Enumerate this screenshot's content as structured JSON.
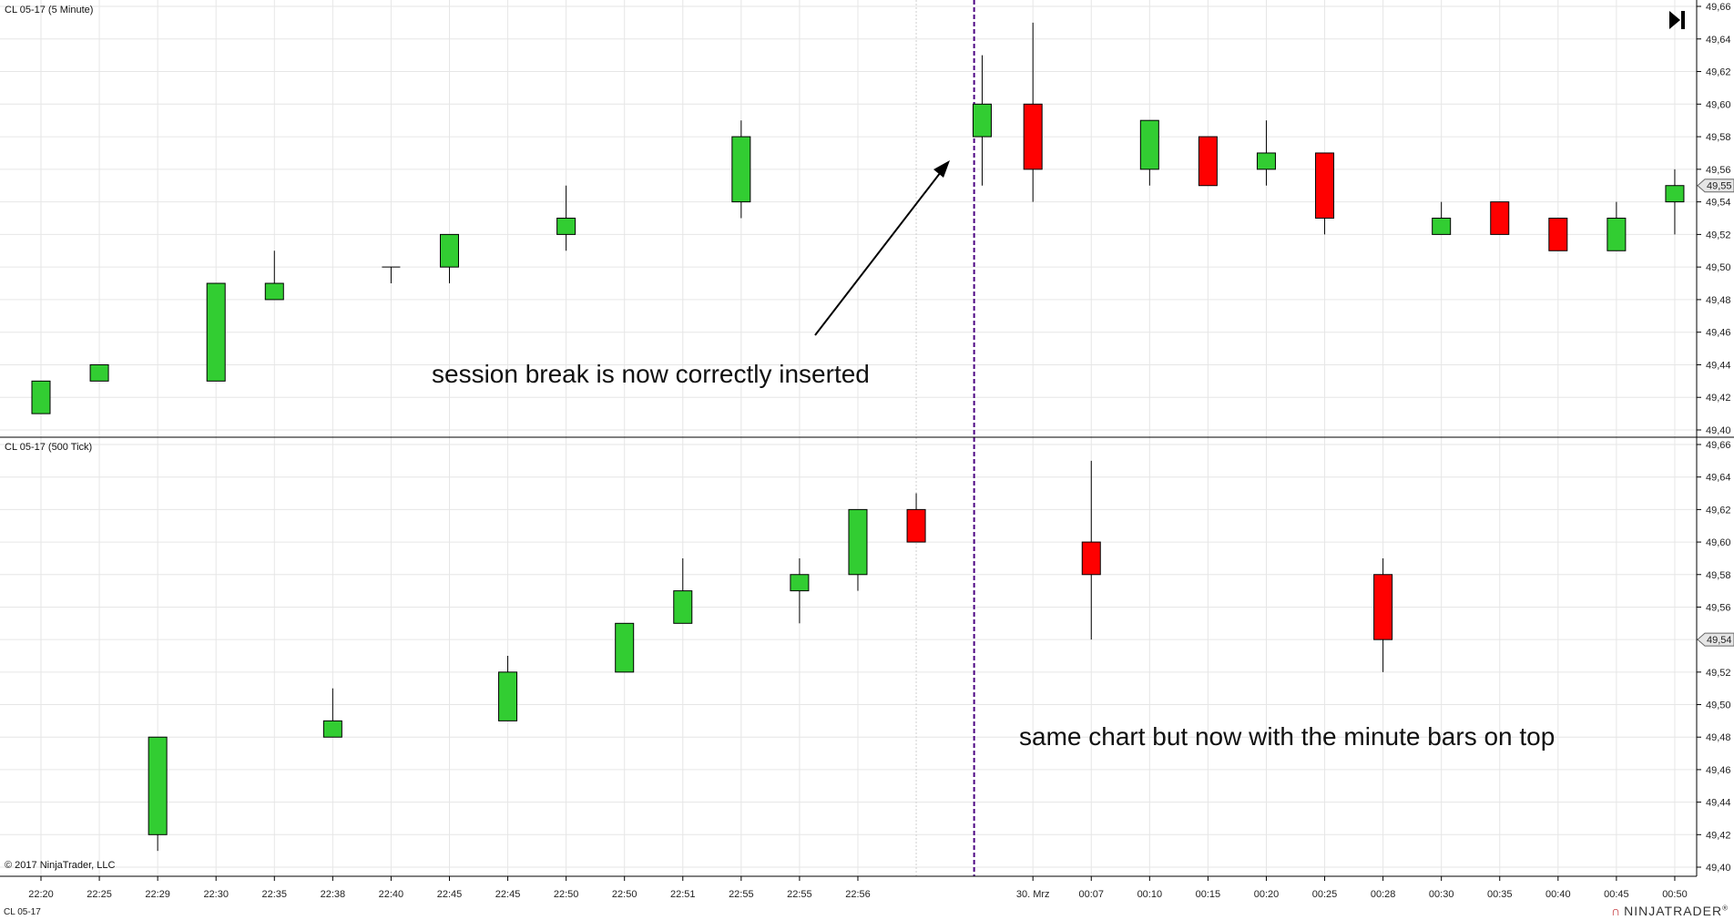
{
  "colors": {
    "up": "#32cd32",
    "down": "#ff0000",
    "grid": "#e6e6e6",
    "session_break": "#4b0082",
    "border": "#000000"
  },
  "icons": {
    "go_to_end": "skip-to-end-icon",
    "brand_logo": "ninjatrader-logo-icon"
  },
  "footer": {
    "symbol": "CL 05-17",
    "brand": "NINJATRADER",
    "brand_mark": "®"
  },
  "x_axis": {
    "labels": [
      "22:20",
      "22:25",
      "22:29",
      "22:30",
      "22:35",
      "22:38",
      "22:40",
      "22:45",
      "22:45",
      "22:50",
      "22:50",
      "22:51",
      "22:55",
      "22:55",
      "22:56",
      "",
      "",
      "30. Mrz",
      "00:07",
      "00:10",
      "00:15",
      "00:20",
      "00:25",
      "00:28",
      "00:30",
      "00:35",
      "00:40",
      "00:45",
      "00:50"
    ],
    "session_break_index": 16
  },
  "chart_data": [
    {
      "type": "candlestick",
      "title": "CL 05-17 (5 Minute)",
      "ylim": [
        49.4,
        49.66
      ],
      "yticks": [
        "49,40",
        "49,42",
        "49,44",
        "49,46",
        "49,48",
        "49,50",
        "49,52",
        "49,54",
        "49,56",
        "49,58",
        "49,60",
        "49,62",
        "49,64",
        "49,66"
      ],
      "last_price_label": "49,55",
      "last_price": 49.55,
      "annotation": "session break is now correctly inserted",
      "copyright": "",
      "bars": [
        {
          "slot": 0,
          "o": 49.41,
          "h": 49.43,
          "l": 49.41,
          "c": 49.43
        },
        {
          "slot": 1,
          "o": 49.43,
          "h": 49.44,
          "l": 49.43,
          "c": 49.44
        },
        {
          "slot": 3,
          "o": 49.43,
          "h": 49.49,
          "l": 49.43,
          "c": 49.49
        },
        {
          "slot": 4,
          "o": 49.48,
          "h": 49.51,
          "l": 49.48,
          "c": 49.49
        },
        {
          "slot": 6,
          "o": 49.5,
          "h": 49.5,
          "l": 49.49,
          "c": 49.5
        },
        {
          "slot": 7,
          "o": 49.5,
          "h": 49.52,
          "l": 49.49,
          "c": 49.52
        },
        {
          "slot": 9,
          "o": 49.52,
          "h": 49.55,
          "l": 49.51,
          "c": 49.53
        },
        {
          "slot": 12,
          "o": 49.54,
          "h": 49.59,
          "l": 49.53,
          "c": 49.58
        },
        {
          "slot": 16.13,
          "o": 49.58,
          "h": 49.63,
          "l": 49.55,
          "c": 49.6
        },
        {
          "slot": 17,
          "o": 49.6,
          "h": 49.65,
          "l": 49.54,
          "c": 49.56
        },
        {
          "slot": 19,
          "o": 49.56,
          "h": 49.59,
          "l": 49.55,
          "c": 49.59
        },
        {
          "slot": 20,
          "o": 49.58,
          "h": 49.58,
          "l": 49.55,
          "c": 49.55
        },
        {
          "slot": 21,
          "o": 49.56,
          "h": 49.59,
          "l": 49.55,
          "c": 49.57
        },
        {
          "slot": 22,
          "o": 49.57,
          "h": 49.57,
          "l": 49.52,
          "c": 49.53
        },
        {
          "slot": 24,
          "o": 49.52,
          "h": 49.54,
          "l": 49.52,
          "c": 49.53
        },
        {
          "slot": 25,
          "o": 49.54,
          "h": 49.54,
          "l": 49.52,
          "c": 49.52
        },
        {
          "slot": 26,
          "o": 49.53,
          "h": 49.53,
          "l": 49.51,
          "c": 49.51
        },
        {
          "slot": 27,
          "o": 49.51,
          "h": 49.54,
          "l": 49.51,
          "c": 49.53
        },
        {
          "slot": 28,
          "o": 49.54,
          "h": 49.56,
          "l": 49.52,
          "c": 49.55
        }
      ]
    },
    {
      "type": "candlestick",
      "title": "CL 05-17 (500 Tick)",
      "ylim": [
        49.4,
        49.66
      ],
      "yticks": [
        "49,40",
        "49,42",
        "49,44",
        "49,46",
        "49,48",
        "49,50",
        "49,52",
        "49,54",
        "49,56",
        "49,58",
        "49,60",
        "49,62",
        "49,64",
        "49,66"
      ],
      "last_price_label": "49,54",
      "last_price": 49.54,
      "annotation": "same chart but now with the minute bars on top",
      "copyright": "© 2017 NinjaTrader, LLC",
      "bars": [
        {
          "slot": 2,
          "o": 49.42,
          "h": 49.48,
          "l": 49.41,
          "c": 49.48
        },
        {
          "slot": 5,
          "o": 49.48,
          "h": 49.51,
          "l": 49.48,
          "c": 49.49
        },
        {
          "slot": 8,
          "o": 49.49,
          "h": 49.53,
          "l": 49.49,
          "c": 49.52
        },
        {
          "slot": 10,
          "o": 49.52,
          "h": 49.55,
          "l": 49.52,
          "c": 49.55
        },
        {
          "slot": 11,
          "o": 49.55,
          "h": 49.59,
          "l": 49.55,
          "c": 49.57
        },
        {
          "slot": 13,
          "o": 49.57,
          "h": 49.59,
          "l": 49.55,
          "c": 49.58
        },
        {
          "slot": 14,
          "o": 49.58,
          "h": 49.62,
          "l": 49.57,
          "c": 49.62
        },
        {
          "slot": 15,
          "o": 49.62,
          "h": 49.63,
          "l": 49.6,
          "c": 49.6
        },
        {
          "slot": 18,
          "o": 49.6,
          "h": 49.65,
          "l": 49.54,
          "c": 49.58
        },
        {
          "slot": 23,
          "o": 49.58,
          "h": 49.59,
          "l": 49.52,
          "c": 49.54
        }
      ]
    }
  ]
}
